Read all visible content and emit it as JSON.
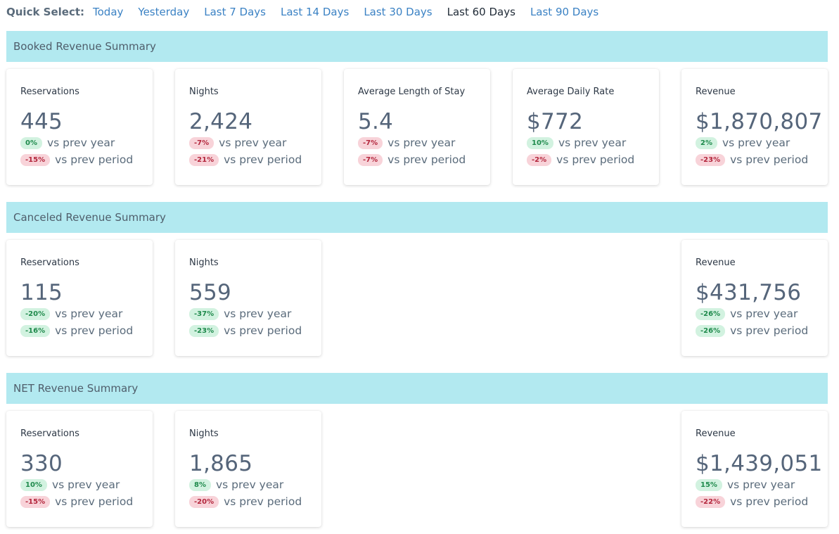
{
  "quick_select": {
    "label": "Quick Select:",
    "options": [
      "Today",
      "Yesterday",
      "Last 7 Days",
      "Last 14 Days",
      "Last 30 Days",
      "Last 60 Days",
      "Last 90 Days"
    ],
    "active": "Last 60 Days"
  },
  "vs_year_label": "vs prev year",
  "vs_period_label": "vs prev period",
  "sections": [
    {
      "title": "Booked Revenue Summary",
      "cards": [
        {
          "title": "Reservations",
          "value": "445",
          "year": "0%",
          "year_trend": "positive",
          "period": "-15%",
          "period_trend": "negative"
        },
        {
          "title": "Nights",
          "value": "2,424",
          "year": "-7%",
          "year_trend": "negative",
          "period": "-21%",
          "period_trend": "negative"
        },
        {
          "title": "Average Length of Stay",
          "value": "5.4",
          "year": "-7%",
          "year_trend": "negative",
          "period": "-7%",
          "period_trend": "negative"
        },
        {
          "title": "Average Daily Rate",
          "value": "$772",
          "year": "10%",
          "year_trend": "positive",
          "period": "-2%",
          "period_trend": "negative"
        },
        {
          "title": "Revenue",
          "value": "$1,870,807",
          "year": "2%",
          "year_trend": "positive",
          "period": "-23%",
          "period_trend": "negative"
        }
      ]
    },
    {
      "title": "Canceled Revenue Summary",
      "cards": [
        {
          "title": "Reservations",
          "value": "115",
          "year": "-20%",
          "year_trend": "positive",
          "period": "-16%",
          "period_trend": "positive"
        },
        {
          "title": "Nights",
          "value": "559",
          "year": "-37%",
          "year_trend": "positive",
          "period": "-23%",
          "period_trend": "positive"
        },
        {
          "title": "Revenue",
          "value": "$431,756",
          "year": "-26%",
          "year_trend": "positive",
          "period": "-26%",
          "period_trend": "positive"
        }
      ]
    },
    {
      "title": "NET Revenue Summary",
      "cards": [
        {
          "title": "Reservations",
          "value": "330",
          "year": "10%",
          "year_trend": "positive",
          "period": "-15%",
          "period_trend": "negative"
        },
        {
          "title": "Nights",
          "value": "1,865",
          "year": "8%",
          "year_trend": "positive",
          "period": "-20%",
          "period_trend": "negative"
        },
        {
          "title": "Revenue",
          "value": "$1,439,051",
          "year": "15%",
          "year_trend": "positive",
          "period": "-22%",
          "period_trend": "negative"
        }
      ]
    }
  ]
}
